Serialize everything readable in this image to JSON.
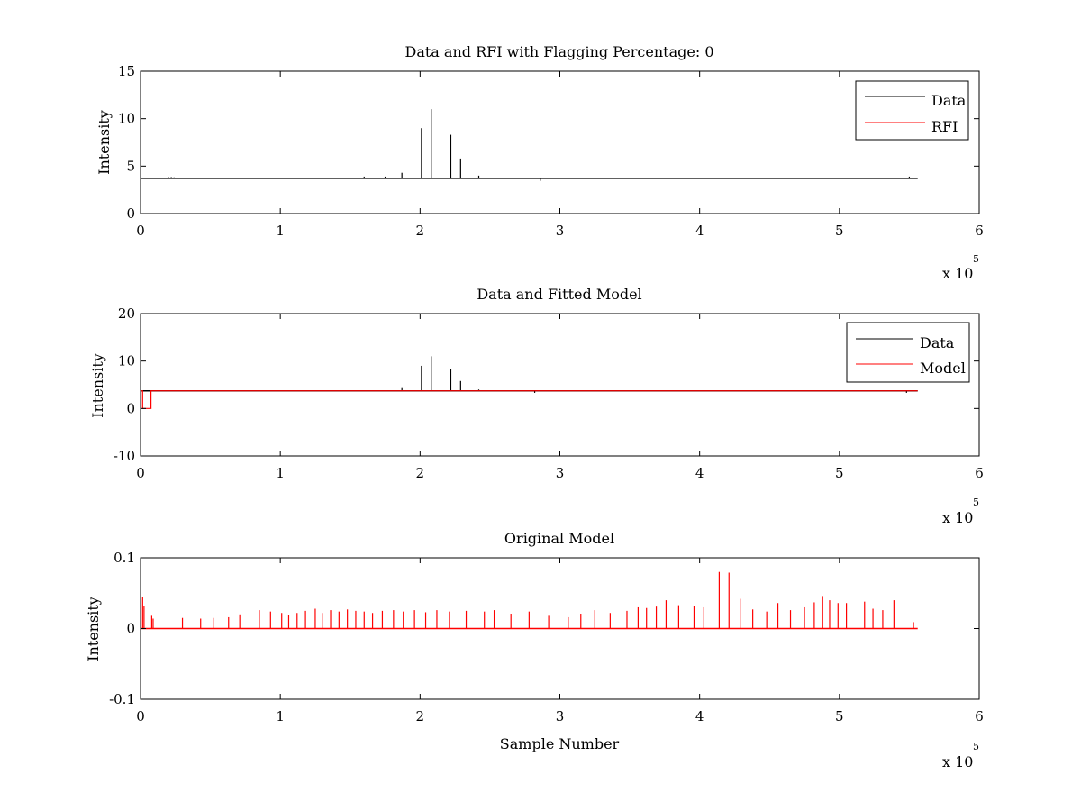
{
  "colors": {
    "data": "#000000",
    "rfi": "#ff0000",
    "model": "#ff0000",
    "axes": "#000000"
  },
  "chart_data": [
    {
      "type": "line",
      "title": "Data and RFI with Flagging Percentage: 0",
      "xlabel": "",
      "ylabel": "Intensity",
      "xlim": [
        0,
        600000
      ],
      "ylim": [
        0,
        15
      ],
      "xticks": [
        0,
        1,
        2,
        3,
        4,
        5,
        6
      ],
      "yticks": [
        0,
        5,
        10,
        15
      ],
      "x_multiplier": "x 10",
      "x_multiplier_exponent": "5",
      "legend": {
        "placement": "top-right",
        "entries": [
          "Data",
          "RFI"
        ]
      },
      "baseline": {
        "start": 0,
        "end": 556000,
        "value": 3.72
      },
      "series": [
        {
          "name": "Data",
          "color": "#000000",
          "spikes": [
            [
              201000,
              9.0
            ],
            [
              208000,
              11.0
            ],
            [
              222000,
              8.3
            ],
            [
              229000,
              5.8
            ],
            [
              187000,
              4.3
            ],
            [
              242000,
              4.0
            ],
            [
              20000,
              3.85
            ],
            [
              22000,
              3.85
            ],
            [
              24000,
              3.82
            ],
            [
              160000,
              3.9
            ],
            [
              175000,
              3.9
            ],
            [
              286000,
              3.45
            ],
            [
              550000,
              3.9
            ]
          ]
        },
        {
          "name": "RFI",
          "color": "#ff0000",
          "values": []
        }
      ]
    },
    {
      "type": "line",
      "title": "Data and Fitted Model",
      "xlabel": "",
      "ylabel": "Intensity",
      "xlim": [
        0,
        600000
      ],
      "ylim": [
        -10,
        20
      ],
      "xticks": [
        0,
        1,
        2,
        3,
        4,
        5,
        6
      ],
      "yticks": [
        -10,
        0,
        10,
        20
      ],
      "x_multiplier": "x 10",
      "x_multiplier_exponent": "5",
      "legend": {
        "placement": "top-right",
        "entries": [
          "Data",
          "Model"
        ]
      },
      "baseline": {
        "start": 0,
        "end": 556000,
        "value": 3.72
      },
      "series": [
        {
          "name": "Data",
          "color": "#000000",
          "spikes": [
            [
              201000,
              9.0
            ],
            [
              208000,
              11.0
            ],
            [
              222000,
              8.3
            ],
            [
              229000,
              5.8
            ],
            [
              187000,
              4.3
            ],
            [
              242000,
              4.0
            ],
            [
              282000,
              3.3
            ],
            [
              548000,
              3.3
            ]
          ]
        },
        {
          "name": "Model",
          "color": "#ff0000",
          "steps": [
            [
              0,
              3.72
            ],
            [
              1500,
              3.72
            ],
            [
              1500,
              0
            ],
            [
              7500,
              0
            ],
            [
              7500,
              3.72
            ],
            [
              556000,
              3.72
            ]
          ]
        }
      ]
    },
    {
      "type": "line",
      "title": "Original Model",
      "xlabel": "Sample Number",
      "ylabel": "Intensity",
      "xlim": [
        0,
        600000
      ],
      "ylim": [
        -0.1,
        0.1
      ],
      "xticks": [
        0,
        1,
        2,
        3,
        4,
        5,
        6
      ],
      "yticks": [
        -0.1,
        0,
        0.1
      ],
      "ytick_labels": [
        "-0.1",
        "0",
        "0.1"
      ],
      "x_multiplier": "x 10",
      "x_multiplier_exponent": "5",
      "baseline": {
        "start": 0,
        "end": 556000,
        "value": 0
      },
      "series": [
        {
          "name": "",
          "color": "#ff0000",
          "spikes": [
            [
              1500,
              0.044
            ],
            [
              2500,
              0.032
            ],
            [
              8000,
              0.018
            ],
            [
              9000,
              0.014
            ],
            [
              30000,
              0.015
            ],
            [
              43000,
              0.014
            ],
            [
              52000,
              0.015
            ],
            [
              63000,
              0.016
            ],
            [
              71000,
              0.02
            ],
            [
              85000,
              0.026
            ],
            [
              93000,
              0.024
            ],
            [
              101000,
              0.022
            ],
            [
              106000,
              0.019
            ],
            [
              112000,
              0.022
            ],
            [
              118000,
              0.025
            ],
            [
              125000,
              0.028
            ],
            [
              130000,
              0.022
            ],
            [
              136000,
              0.026
            ],
            [
              142000,
              0.024
            ],
            [
              148000,
              0.027
            ],
            [
              154000,
              0.025
            ],
            [
              160000,
              0.024
            ],
            [
              166000,
              0.022
            ],
            [
              173000,
              0.025
            ],
            [
              181000,
              0.026
            ],
            [
              188000,
              0.024
            ],
            [
              196000,
              0.026
            ],
            [
              204000,
              0.023
            ],
            [
              212000,
              0.026
            ],
            [
              221000,
              0.024
            ],
            [
              233000,
              0.025
            ],
            [
              246000,
              0.024
            ],
            [
              253000,
              0.026
            ],
            [
              265000,
              0.021
            ],
            [
              278000,
              0.024
            ],
            [
              292000,
              0.018
            ],
            [
              306000,
              0.016
            ],
            [
              315000,
              0.021
            ],
            [
              325000,
              0.026
            ],
            [
              336000,
              0.022
            ],
            [
              348000,
              0.025
            ],
            [
              356000,
              0.03
            ],
            [
              362000,
              0.029
            ],
            [
              369000,
              0.031
            ],
            [
              376000,
              0.04
            ],
            [
              385000,
              0.033
            ],
            [
              396000,
              0.032
            ],
            [
              403000,
              0.03
            ],
            [
              414000,
              0.08
            ],
            [
              421000,
              0.079
            ],
            [
              429000,
              0.042
            ],
            [
              438000,
              0.027
            ],
            [
              448000,
              0.024
            ],
            [
              456000,
              0.036
            ],
            [
              465000,
              0.026
            ],
            [
              475000,
              0.03
            ],
            [
              482000,
              0.037
            ],
            [
              488000,
              0.046
            ],
            [
              493000,
              0.04
            ],
            [
              499000,
              0.036
            ],
            [
              505000,
              0.036
            ],
            [
              518000,
              0.038
            ],
            [
              524000,
              0.028
            ],
            [
              531000,
              0.026
            ],
            [
              539000,
              0.04
            ],
            [
              553000,
              0.009
            ]
          ]
        }
      ]
    }
  ]
}
